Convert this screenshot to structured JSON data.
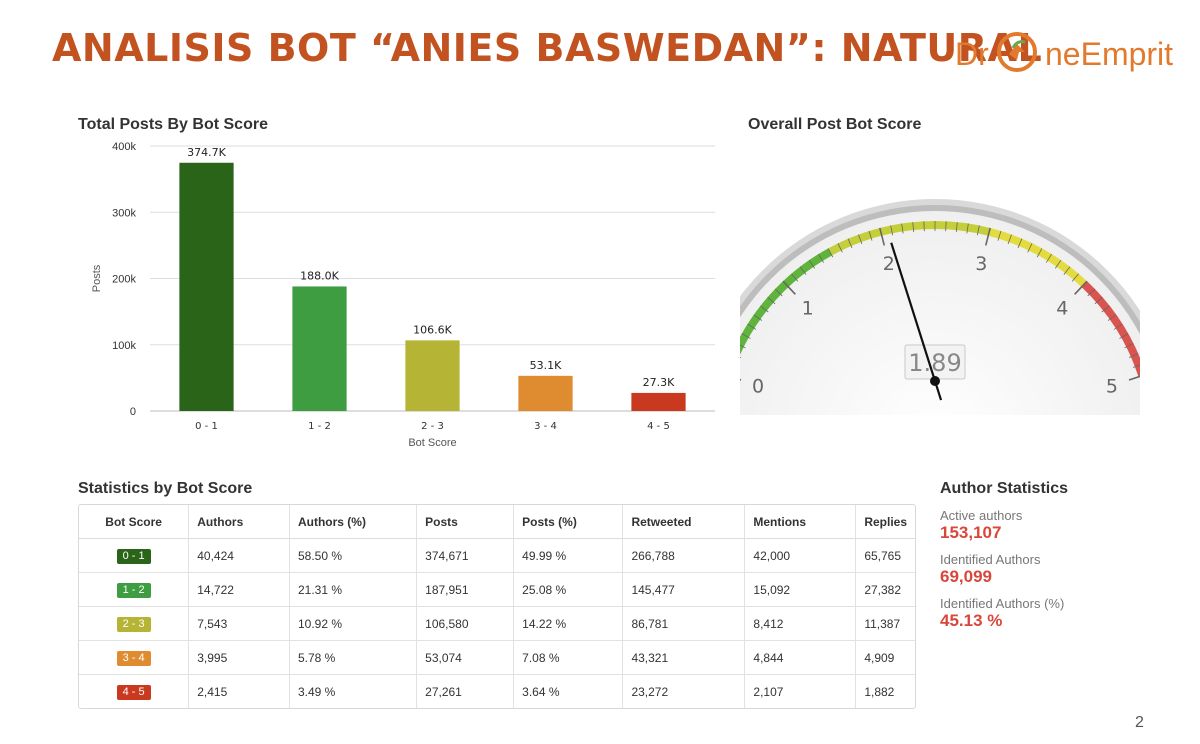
{
  "page": {
    "title": "ANALISIS BOT “ANIES BASWEDAN”: NATURAL",
    "logo_text_left": "Dr",
    "logo_text_right": "neEmprit",
    "page_number": "2"
  },
  "colors": {
    "title": "#c2521f",
    "score_0_1": "#2a6418",
    "score_1_2": "#3f9d41",
    "score_2_3": "#b6b435",
    "score_3_4": "#df8b30",
    "score_4_5": "#c8391f",
    "author_value": "#d9473a"
  },
  "chart_data": [
    {
      "type": "bar",
      "title": "Total Posts By Bot Score",
      "xlabel": "Bot Score",
      "ylabel": "Posts",
      "categories": [
        "0 - 1",
        "1 - 2",
        "2 - 3",
        "3 - 4",
        "4 - 5"
      ],
      "values": [
        374700,
        188000,
        106600,
        53100,
        27300
      ],
      "value_labels": [
        "374.7K",
        "188.0K",
        "106.6K",
        "53.1K",
        "27.3K"
      ],
      "bar_colors": [
        "#2a6418",
        "#3f9d41",
        "#b6b435",
        "#df8b30",
        "#c8391f"
      ],
      "ylim": [
        0,
        400000
      ],
      "yticks": [
        0,
        100000,
        200000,
        300000,
        400000
      ],
      "ytick_labels": [
        "0",
        "100k",
        "200k",
        "300k",
        "400k"
      ],
      "grid": true
    },
    {
      "type": "gauge",
      "title": "Overall Post Bot Score",
      "value": 1.89,
      "value_label": "1.89",
      "min": 0,
      "max": 5,
      "tick_labels": [
        "0",
        "1",
        "2",
        "3",
        "4",
        "5"
      ],
      "bands": [
        {
          "from": 0,
          "to": 1.5,
          "color": "#5fb43c"
        },
        {
          "from": 1.5,
          "to": 3.0,
          "color": "#c4cf3a"
        },
        {
          "from": 3.0,
          "to": 4.0,
          "color": "#e4dc3f"
        },
        {
          "from": 4.0,
          "to": 5.0,
          "color": "#d9534f"
        }
      ]
    }
  ],
  "stats": {
    "title": "Statistics by Bot Score",
    "columns": [
      "Bot Score",
      "Authors",
      "Authors (%)",
      "Posts",
      "Posts (%)",
      "Retweeted",
      "Mentions",
      "Replies"
    ],
    "rows": [
      {
        "score": "0 - 1",
        "color": "#2a6418",
        "cells": [
          "40,424",
          "58.50 %",
          "374,671",
          "49.99 %",
          "266,788",
          "42,000",
          "65,765"
        ]
      },
      {
        "score": "1 - 2",
        "color": "#3f9d41",
        "cells": [
          "14,722",
          "21.31 %",
          "187,951",
          "25.08 %",
          "145,477",
          "15,092",
          "27,382"
        ]
      },
      {
        "score": "2 - 3",
        "color": "#b6b435",
        "cells": [
          "7,543",
          "10.92 %",
          "106,580",
          "14.22 %",
          "86,781",
          "8,412",
          "11,387"
        ]
      },
      {
        "score": "3 - 4",
        "color": "#df8b30",
        "cells": [
          "3,995",
          "5.78 %",
          "53,074",
          "7.08 %",
          "43,321",
          "4,844",
          "4,909"
        ]
      },
      {
        "score": "4 - 5",
        "color": "#c8391f",
        "cells": [
          "2,415",
          "3.49 %",
          "27,261",
          "3.64 %",
          "23,272",
          "2,107",
          "1,882"
        ]
      }
    ]
  },
  "author_stats": {
    "title": "Author Statistics",
    "items": [
      {
        "label": "Active authors",
        "value": "153,107"
      },
      {
        "label": "Identified Authors",
        "value": "69,099"
      },
      {
        "label": "Identified Authors (%)",
        "value": "45.13 %"
      }
    ]
  }
}
